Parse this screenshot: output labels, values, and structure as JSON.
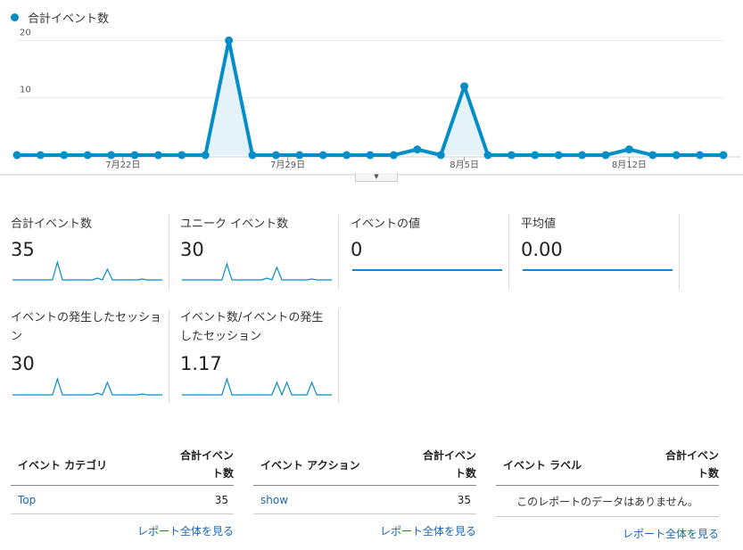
{
  "legend": {
    "label": "合計イベント数",
    "color": "#058dc7"
  },
  "chart_data": {
    "type": "line",
    "series": [
      {
        "name": "合計イベント数",
        "values": [
          0,
          0,
          0,
          0,
          0,
          0,
          0,
          0,
          0,
          20,
          0,
          0,
          0,
          0,
          0,
          0,
          0,
          1,
          0,
          12,
          0,
          0,
          0,
          0,
          0,
          0,
          1,
          0,
          0,
          0,
          0
        ]
      }
    ],
    "x_tick_labels": [
      "7月22日",
      "7月29日",
      "8月5日",
      "8月12日"
    ],
    "x_tick_indices": [
      4.5,
      11.5,
      19,
      26
    ],
    "y_ticks": [
      10,
      20
    ],
    "ylim": [
      0,
      21
    ],
    "grid": true
  },
  "tiles": [
    {
      "label": "合計イベント数",
      "value": "35",
      "spark": [
        0,
        0,
        0,
        0,
        0,
        0,
        0,
        0,
        0,
        10,
        0,
        0,
        0,
        0,
        0,
        0,
        0,
        1,
        0,
        6,
        0,
        0,
        0,
        0,
        0,
        0,
        0.5,
        0,
        0,
        0,
        0
      ]
    },
    {
      "label": "ユニーク イベント数",
      "value": "30",
      "spark": [
        0,
        0,
        0,
        0,
        0,
        0,
        0,
        0,
        0,
        9,
        0,
        0,
        0,
        0,
        0,
        0,
        0,
        1,
        0,
        7,
        0,
        0,
        0,
        0,
        0,
        0,
        0.5,
        0,
        0,
        0,
        0
      ]
    },
    {
      "label": "イベントの値",
      "value": "0",
      "spark": [
        0,
        0
      ]
    },
    {
      "label": "平均値",
      "value": "0.00",
      "spark": [
        0,
        0
      ]
    },
    {
      "label": "イベントの発生したセッション",
      "value": "30",
      "spark": [
        0,
        0,
        0,
        0,
        0,
        0,
        0,
        0,
        0,
        9,
        0,
        0,
        0,
        0,
        0,
        0,
        0,
        1,
        0,
        7,
        0,
        0,
        0,
        0,
        0,
        0,
        0.5,
        0,
        0,
        0,
        0
      ]
    },
    {
      "label": "イベント数/イベントの発生したセッション",
      "value": "1.17",
      "spark": [
        0,
        0,
        0,
        0,
        0,
        0,
        0,
        0,
        0,
        9,
        0,
        0,
        0,
        0,
        0,
        0,
        0,
        0,
        0,
        7,
        0,
        7,
        0,
        0,
        0,
        0,
        7,
        0,
        0,
        0,
        0
      ]
    }
  ],
  "tables": [
    {
      "header_left": "イベント カテゴリ",
      "header_right": [
        "合計イベン",
        "ト数"
      ],
      "rows": [
        {
          "name": "Top",
          "value": "35"
        }
      ],
      "empty_text": "",
      "more": "レポート全体を見る"
    },
    {
      "header_left": "イベント アクション",
      "header_right": [
        "合計イベン",
        "ト数"
      ],
      "rows": [
        {
          "name": "show",
          "value": "35"
        }
      ],
      "empty_text": "",
      "more": "レポート全体を見る"
    },
    {
      "header_left": "イベント ラベル",
      "header_right": [
        "合計イベン",
        "ト数"
      ],
      "rows": [],
      "empty_text": "このレポートのデータはありません。",
      "more": "レポート全体を見る"
    }
  ]
}
